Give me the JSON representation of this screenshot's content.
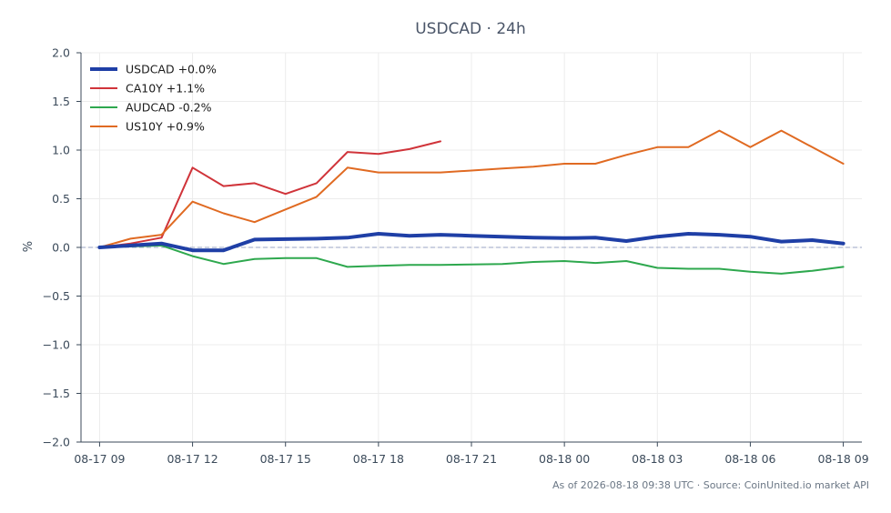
{
  "chart_data": {
    "type": "line",
    "title": "USDCAD · 24h",
    "xlabel": "",
    "ylabel": "%",
    "ylim": [
      -2.0,
      2.0
    ],
    "yticks": [
      "2.0",
      "1.5",
      "1.0",
      "0.5",
      "0.0",
      "−0.5",
      "−1.0",
      "−1.5",
      "−2.0"
    ],
    "ytick_values": [
      2.0,
      1.5,
      1.0,
      0.5,
      0.0,
      -0.5,
      -1.0,
      -1.5,
      -2.0
    ],
    "xlim": [
      -0.6,
      24.6
    ],
    "xticks": [
      "08-17 09",
      "08-17 12",
      "08-17 15",
      "08-17 18",
      "08-17 21",
      "08-18 00",
      "08-18 03",
      "08-18 06",
      "08-18 09"
    ],
    "xtick_hours": [
      0,
      3,
      6,
      9,
      12,
      15,
      18,
      21,
      24
    ],
    "x_unit": "hours since 08-17 09:00",
    "grid": true,
    "zero_line": true,
    "legend_position": "top-left",
    "series": [
      {
        "name": "USDCAD +0.0%",
        "color": "#1f3fa6",
        "bold": true,
        "x": [
          0,
          1,
          2,
          3,
          4,
          5,
          6,
          7,
          8,
          9,
          10,
          11,
          12,
          13,
          14,
          15,
          16,
          17,
          18,
          19,
          20,
          21,
          22,
          23,
          24
        ],
        "values": [
          0.0,
          0.02,
          0.04,
          -0.03,
          -0.03,
          0.08,
          0.085,
          0.09,
          0.1,
          0.14,
          0.12,
          0.13,
          0.12,
          0.11,
          0.1,
          0.095,
          0.1,
          0.065,
          0.11,
          0.14,
          0.13,
          0.11,
          0.06,
          0.075,
          0.04
        ]
      },
      {
        "name": "CA10Y +1.1%",
        "color": "#d0343a",
        "bold": false,
        "x": [
          0,
          1,
          2,
          3,
          4,
          5,
          6,
          7,
          8,
          9,
          10,
          11
        ],
        "values": [
          0.0,
          0.04,
          0.1,
          0.82,
          0.63,
          0.66,
          0.55,
          0.66,
          0.98,
          0.96,
          1.01,
          1.09
        ]
      },
      {
        "name": "AUDCAD -0.2%",
        "color": "#2ea84e",
        "bold": false,
        "x": [
          0,
          1,
          2,
          3,
          4,
          5,
          6,
          7,
          8,
          9,
          10,
          11,
          12,
          13,
          14,
          15,
          16,
          17,
          18,
          19,
          20,
          21,
          22,
          23,
          24
        ],
        "values": [
          0.0,
          0.01,
          0.02,
          -0.09,
          -0.17,
          -0.12,
          -0.11,
          -0.11,
          -0.2,
          -0.19,
          -0.18,
          -0.18,
          -0.175,
          -0.17,
          -0.15,
          -0.14,
          -0.16,
          -0.14,
          -0.21,
          -0.22,
          -0.22,
          -0.25,
          -0.27,
          -0.24,
          -0.2
        ]
      },
      {
        "name": "US10Y +0.9%",
        "color": "#e06a22",
        "bold": false,
        "x": [
          0,
          1,
          2,
          3,
          4,
          5,
          6,
          7,
          8,
          9,
          10,
          11,
          12,
          13,
          14,
          15,
          16,
          17,
          18,
          19,
          20,
          21,
          22,
          23,
          24
        ],
        "values": [
          0.0,
          0.09,
          0.13,
          0.47,
          0.35,
          0.26,
          0.39,
          0.52,
          0.82,
          0.77,
          0.77,
          0.77,
          0.79,
          0.81,
          0.83,
          0.86,
          0.86,
          0.95,
          1.03,
          1.03,
          1.2,
          1.03,
          1.2,
          1.03,
          0.86
        ]
      }
    ],
    "footer": "As of 2026-08-18 09:38 UTC · Source: CoinUnited.io market API"
  }
}
